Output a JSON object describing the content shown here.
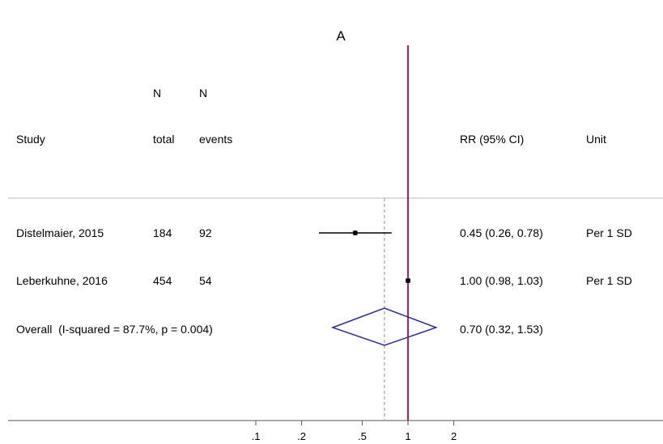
{
  "chart_data": {
    "type": "forest",
    "title": "A",
    "columns": {
      "study": "Study",
      "n_total": [
        "N",
        "total"
      ],
      "n_events": [
        "N",
        "events"
      ],
      "estimate": "RR (95% CI)",
      "unit": "Unit"
    },
    "studies": [
      {
        "study": "Distelmaier, 2015",
        "n_total": "184",
        "n_events": "92",
        "rr": 0.45,
        "lo": 0.26,
        "hi": 0.78,
        "label": "0.45 (0.26, 0.78)",
        "unit": "Per 1 SD"
      },
      {
        "study": "Leberkuhne, 2016",
        "n_total": "454",
        "n_events": "54",
        "rr": 1.0,
        "lo": 0.98,
        "hi": 1.03,
        "label": "1.00 (0.98, 1.03)",
        "unit": "Per 1 SD"
      }
    ],
    "overall": {
      "label": "Overall  (I-squared = 87.7%, p = 0.004)",
      "rr": 0.7,
      "lo": 0.32,
      "hi": 1.53,
      "est_label": "0.70 (0.32, 1.53)"
    },
    "x_scale": "log",
    "x_ticks": [
      0.1,
      0.2,
      0.5,
      1,
      2
    ],
    "x_tick_labels": [
      ".1",
      ".2",
      ".5",
      "1",
      "2"
    ],
    "null_line": 1,
    "colors": {
      "null_line": "#c2185b",
      "overall_line": "#d98aa8",
      "diamond": "#2b2f8f",
      "ci": "#000000",
      "axis": "#555555",
      "divider": "#bbbbbb"
    }
  }
}
